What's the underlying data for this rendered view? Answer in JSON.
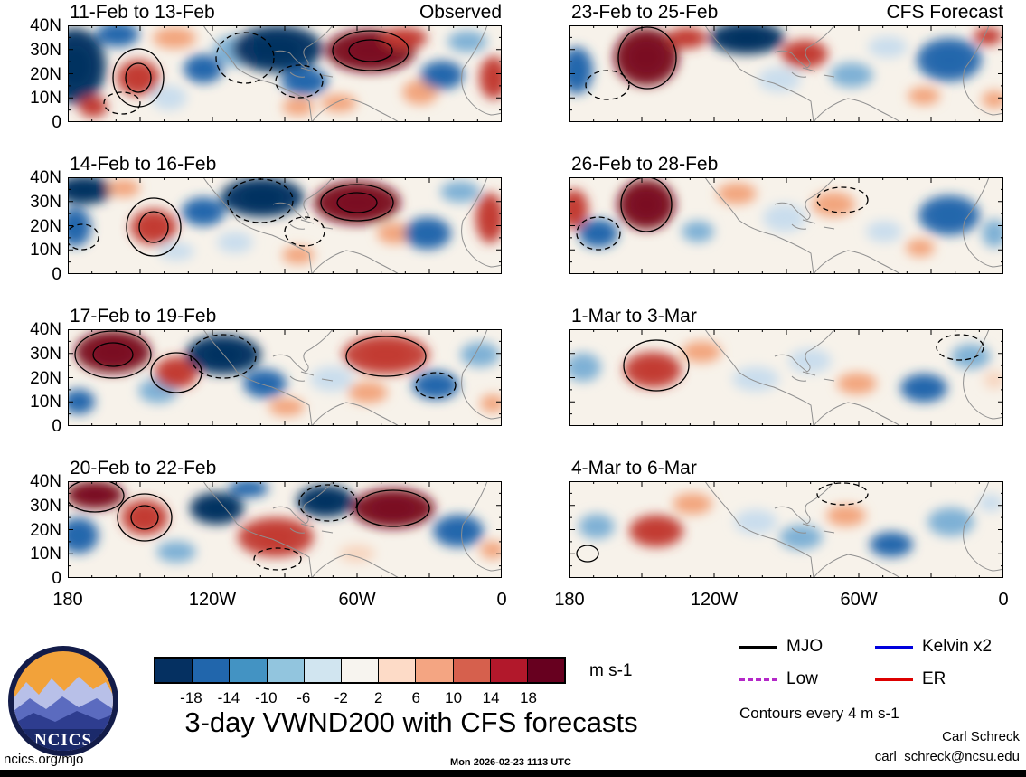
{
  "chart_data": {
    "type": "heatmap",
    "title": "3-day VWND200 with CFS forecasts",
    "variable": "VWND200 anomaly maps, observed and CFS forecast 3-day means",
    "axes": {
      "y_ticks": [
        "40N",
        "30N",
        "20N",
        "10N",
        "0"
      ],
      "x_ticks": [
        "180",
        "120W",
        "60W",
        "0"
      ],
      "x_positions_pct": [
        0,
        33.33,
        66.67,
        100
      ],
      "lat_range": [
        "0",
        "40N"
      ],
      "lon_range": [
        "180",
        "0"
      ]
    },
    "colorbar": {
      "tick_labels": [
        "-18",
        "-14",
        "-10",
        "-6",
        "-2",
        "2",
        "6",
        "10",
        "14",
        "18"
      ],
      "colors": [
        "#053061",
        "#2166ac",
        "#4393c3",
        "#92c5de",
        "#d1e5f0",
        "#f7f4ef",
        "#fddbc7",
        "#f4a582",
        "#d6604d",
        "#b2182b",
        "#67001f"
      ],
      "unit": "m s-1"
    },
    "palette": {
      "B3": "#053061",
      "B2": "#2166ac",
      "B1": "#7db0d5",
      "L1": "#c9dded",
      "P1": "#f7d5bf",
      "R1": "#f2a47c",
      "R2": "#c23b33",
      "R3": "#7a0c20"
    },
    "legend": {
      "items": [
        {
          "label": "MJO",
          "color": "#000000",
          "style": "solid"
        },
        {
          "label": "Kelvin x2",
          "color": "#0000dd",
          "style": "solid"
        },
        {
          "label": "Low",
          "color": "#b428c8",
          "style": "dashed"
        },
        {
          "label": "ER",
          "color": "#dd0000",
          "style": "solid"
        }
      ],
      "note": "Contours every 4 m s-1"
    },
    "panels": [
      {
        "label": "11-Feb to 13-Feb",
        "tag": "Observed",
        "col": 0,
        "row": 0,
        "blobs": [
          [
            8,
            45,
            34,
            42,
            "B3"
          ],
          [
            28,
            90,
            16,
            12,
            "R2"
          ],
          [
            55,
            10,
            24,
            14,
            "B2"
          ],
          [
            78,
            58,
            24,
            20,
            "R2"
          ],
          [
            118,
            14,
            24,
            12,
            "R1"
          ],
          [
            112,
            80,
            20,
            14,
            "L1"
          ],
          [
            150,
            48,
            22,
            16,
            "B2"
          ],
          [
            190,
            28,
            30,
            18,
            "B1"
          ],
          [
            232,
            26,
            50,
            26,
            "B3"
          ],
          [
            262,
            62,
            26,
            16,
            "B2"
          ],
          [
            255,
            90,
            18,
            10,
            "R1"
          ],
          [
            300,
            86,
            20,
            10,
            "R1"
          ],
          [
            335,
            28,
            50,
            24,
            "R3"
          ],
          [
            372,
            14,
            26,
            12,
            "R2"
          ],
          [
            390,
            74,
            20,
            14,
            "R1"
          ],
          [
            414,
            55,
            24,
            16,
            "B2"
          ],
          [
            442,
            18,
            22,
            12,
            "B1"
          ],
          [
            471,
            58,
            16,
            24,
            "R2"
          ]
        ],
        "solid": [
          [
            78,
            58,
            28,
            32
          ],
          [
            78,
            58,
            14,
            16
          ],
          [
            335,
            28,
            42,
            22
          ],
          [
            335,
            28,
            24,
            12
          ]
        ],
        "dashed": [
          [
            196,
            36,
            32,
            28
          ],
          [
            256,
            62,
            26,
            18
          ],
          [
            60,
            86,
            20,
            12
          ]
        ]
      },
      {
        "label": "14-Feb to 16-Feb",
        "tag": "",
        "col": 0,
        "row": 1,
        "blobs": [
          [
            18,
            14,
            32,
            16,
            "B3"
          ],
          [
            8,
            55,
            18,
            22,
            "B2"
          ],
          [
            62,
            12,
            18,
            10,
            "R1"
          ],
          [
            95,
            55,
            26,
            20,
            "R2"
          ],
          [
            120,
            82,
            20,
            10,
            "L1"
          ],
          [
            150,
            38,
            24,
            16,
            "B2"
          ],
          [
            215,
            22,
            46,
            22,
            "B3"
          ],
          [
            185,
            72,
            20,
            12,
            "L1"
          ],
          [
            255,
            86,
            18,
            10,
            "R1"
          ],
          [
            320,
            28,
            48,
            24,
            "R3"
          ],
          [
            362,
            62,
            20,
            12,
            "R1"
          ],
          [
            398,
            62,
            26,
            18,
            "B2"
          ],
          [
            434,
            16,
            22,
            12,
            "B1"
          ],
          [
            467,
            45,
            16,
            28,
            "R2"
          ]
        ],
        "solid": [
          [
            95,
            55,
            30,
            32
          ],
          [
            95,
            55,
            16,
            17
          ],
          [
            320,
            28,
            40,
            20
          ],
          [
            320,
            28,
            22,
            11
          ]
        ],
        "dashed": [
          [
            213,
            26,
            36,
            24
          ],
          [
            16,
            66,
            18,
            14
          ],
          [
            262,
            60,
            22,
            16
          ]
        ]
      },
      {
        "label": "17-Feb to 19-Feb",
        "tag": "",
        "col": 0,
        "row": 2,
        "blobs": [
          [
            50,
            25,
            42,
            24,
            "R3"
          ],
          [
            12,
            80,
            18,
            14,
            "B2"
          ],
          [
            100,
            68,
            22,
            14,
            "B1"
          ],
          [
            120,
            48,
            24,
            18,
            "R2"
          ],
          [
            172,
            28,
            42,
            22,
            "B3"
          ],
          [
            218,
            60,
            24,
            16,
            "B2"
          ],
          [
            242,
            86,
            20,
            10,
            "R1"
          ],
          [
            292,
            55,
            24,
            14,
            "L1"
          ],
          [
            352,
            28,
            48,
            22,
            "R2"
          ],
          [
            332,
            70,
            22,
            12,
            "R1"
          ],
          [
            407,
            62,
            26,
            16,
            "B2"
          ],
          [
            456,
            28,
            22,
            14,
            "B1"
          ],
          [
            470,
            82,
            14,
            10,
            "R1"
          ]
        ],
        "solid": [
          [
            50,
            28,
            42,
            26
          ],
          [
            50,
            28,
            22,
            13
          ],
          [
            120,
            48,
            28,
            22
          ],
          [
            352,
            30,
            44,
            22
          ]
        ],
        "dashed": [
          [
            172,
            30,
            36,
            24
          ],
          [
            407,
            62,
            22,
            14
          ]
        ]
      },
      {
        "label": "20-Feb to 22-Feb",
        "tag": "",
        "col": 0,
        "row": 3,
        "blobs": [
          [
            30,
            15,
            32,
            16,
            "R3"
          ],
          [
            12,
            60,
            22,
            20,
            "B2"
          ],
          [
            85,
            40,
            26,
            20,
            "R2"
          ],
          [
            120,
            78,
            22,
            12,
            "B1"
          ],
          [
            165,
            30,
            30,
            18,
            "B3"
          ],
          [
            230,
            62,
            42,
            22,
            "R2"
          ],
          [
            285,
            22,
            32,
            18,
            "B3"
          ],
          [
            200,
            8,
            22,
            10,
            "B2"
          ],
          [
            360,
            30,
            46,
            22,
            "R3"
          ],
          [
            432,
            55,
            28,
            18,
            "B2"
          ],
          [
            470,
            76,
            14,
            10,
            "R1"
          ],
          [
            320,
            80,
            20,
            10,
            "P1"
          ]
        ],
        "solid": [
          [
            30,
            16,
            32,
            18
          ],
          [
            85,
            40,
            30,
            26
          ],
          [
            85,
            40,
            15,
            13
          ],
          [
            360,
            30,
            40,
            20
          ]
        ],
        "dashed": [
          [
            288,
            24,
            32,
            20
          ],
          [
            232,
            86,
            26,
            12
          ]
        ]
      },
      {
        "label": "23-Feb to 25-Feb",
        "tag": "CFS Forecast",
        "col": 1,
        "row": 0,
        "blobs": [
          [
            8,
            50,
            18,
            26,
            "B2"
          ],
          [
            85,
            35,
            36,
            32,
            "R3"
          ],
          [
            130,
            14,
            22,
            12,
            "R2"
          ],
          [
            196,
            14,
            42,
            18,
            "B3"
          ],
          [
            232,
            60,
            24,
            14,
            "L1"
          ],
          [
            260,
            32,
            26,
            16,
            "R2"
          ],
          [
            312,
            55,
            24,
            14,
            "B1"
          ],
          [
            352,
            24,
            22,
            12,
            "L1"
          ],
          [
            420,
            38,
            36,
            24,
            "B2"
          ],
          [
            392,
            78,
            18,
            10,
            "R1"
          ],
          [
            463,
            12,
            16,
            10,
            "R2"
          ],
          [
            470,
            82,
            14,
            10,
            "R1"
          ]
        ],
        "solid": [
          [
            86,
            36,
            32,
            34
          ]
        ],
        "dashed": [
          [
            42,
            66,
            24,
            16
          ]
        ]
      },
      {
        "label": "26-Feb to 28-Feb",
        "tag": "",
        "col": 1,
        "row": 1,
        "blobs": [
          [
            5,
            35,
            16,
            22,
            "R2"
          ],
          [
            32,
            62,
            22,
            16,
            "B2"
          ],
          [
            85,
            30,
            32,
            28,
            "R3"
          ],
          [
            142,
            60,
            18,
            12,
            "B1"
          ],
          [
            185,
            18,
            22,
            12,
            "R1"
          ],
          [
            238,
            45,
            24,
            16,
            "L1"
          ],
          [
            292,
            30,
            24,
            14,
            "R1"
          ],
          [
            348,
            60,
            20,
            12,
            "L1"
          ],
          [
            420,
            42,
            34,
            22,
            "B2"
          ],
          [
            388,
            78,
            16,
            10,
            "R1"
          ],
          [
            470,
            62,
            14,
            16,
            "B1"
          ]
        ],
        "solid": [
          [
            85,
            30,
            28,
            30
          ]
        ],
        "dashed": [
          [
            32,
            62,
            24,
            18
          ],
          [
            302,
            25,
            28,
            14
          ]
        ]
      },
      {
        "label": "1-Mar to 3-Mar",
        "tag": "",
        "col": 1,
        "row": 2,
        "blobs": [
          [
            15,
            42,
            20,
            16,
            "B1"
          ],
          [
            92,
            45,
            32,
            20,
            "R2"
          ],
          [
            146,
            25,
            22,
            12,
            "R1"
          ],
          [
            206,
            55,
            26,
            14,
            "L1"
          ],
          [
            266,
            35,
            24,
            14,
            "L1"
          ],
          [
            318,
            60,
            22,
            12,
            "R1"
          ],
          [
            392,
            65,
            26,
            16,
            "B2"
          ],
          [
            444,
            30,
            22,
            14,
            "B1"
          ],
          [
            470,
            56,
            12,
            10,
            "P1"
          ]
        ],
        "solid": [
          [
            96,
            40,
            36,
            28
          ]
        ],
        "dashed": [
          [
            432,
            20,
            26,
            14
          ]
        ]
      },
      {
        "label": "4-Mar to 6-Mar",
        "tag": "",
        "col": 1,
        "row": 3,
        "blobs": [
          [
            30,
            50,
            20,
            14,
            "B1"
          ],
          [
            96,
            55,
            30,
            18,
            "R2"
          ],
          [
            136,
            25,
            22,
            12,
            "R1"
          ],
          [
            206,
            45,
            24,
            14,
            "L1"
          ],
          [
            256,
            62,
            24,
            14,
            "B1"
          ],
          [
            306,
            38,
            22,
            12,
            "R1"
          ],
          [
            356,
            70,
            24,
            14,
            "B2"
          ],
          [
            422,
            45,
            26,
            16,
            "B1"
          ],
          [
            466,
            24,
            14,
            10,
            "L1"
          ]
        ],
        "solid": [
          [
            20,
            80,
            12,
            9
          ]
        ],
        "dashed": [
          [
            302,
            14,
            28,
            12
          ]
        ]
      }
    ]
  },
  "footer": {
    "site": "ncics.org/mjo",
    "timestamp": "Mon 2026-02-23 1113 UTC",
    "author": "Carl Schreck",
    "email": "carl_schreck@ncsu.edu",
    "logo_text": "NCICS"
  }
}
